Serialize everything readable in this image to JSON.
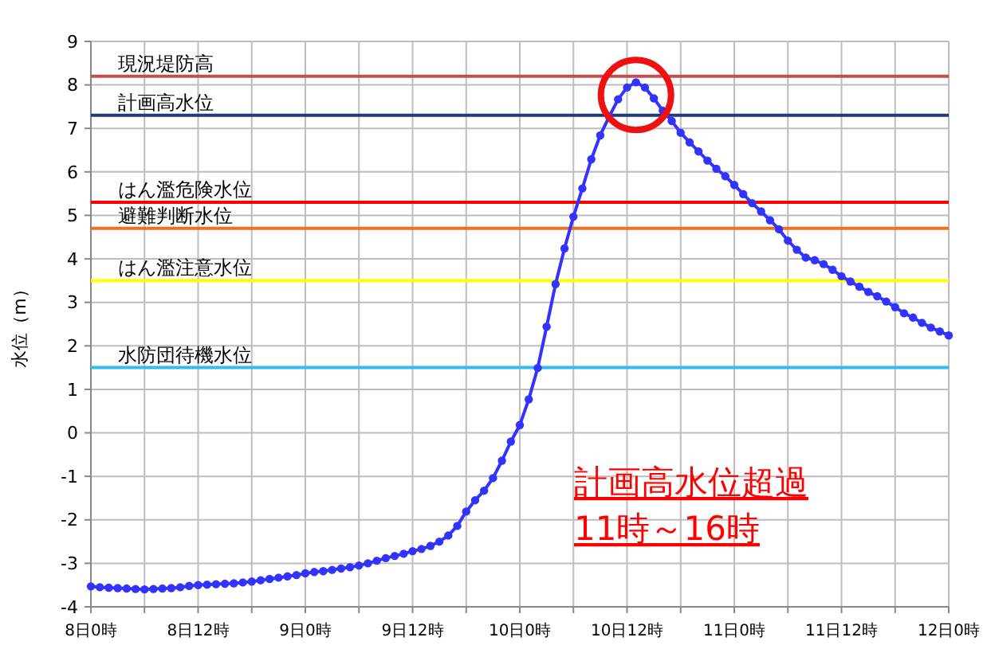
{
  "chart_data": {
    "type": "line",
    "ylabel": "水位（m）",
    "categories": [
      "8日0時",
      null,
      null,
      null,
      null,
      null,
      null,
      null,
      null,
      null,
      null,
      null,
      "8日12時",
      null,
      null,
      null,
      null,
      null,
      null,
      null,
      null,
      null,
      null,
      null,
      "9日0時",
      null,
      null,
      null,
      null,
      null,
      null,
      null,
      null,
      null,
      null,
      null,
      "9日12時",
      null,
      null,
      null,
      null,
      null,
      null,
      null,
      null,
      null,
      null,
      null,
      "10日0時",
      null,
      null,
      null,
      null,
      null,
      null,
      null,
      null,
      null,
      null,
      null,
      "10日12時",
      null,
      null,
      null,
      null,
      null,
      null,
      null,
      null,
      null,
      null,
      null,
      "11日0時",
      null,
      null,
      null,
      null,
      null,
      null,
      null,
      null,
      null,
      null,
      null,
      "11日12時",
      null,
      null,
      null,
      null,
      null,
      null,
      null,
      null,
      null,
      null,
      null,
      "12日0時"
    ],
    "series": [
      {
        "color": "#3333ff",
        "values": [
          -3.53,
          -3.55,
          -3.56,
          -3.57,
          -3.58,
          -3.59,
          -3.6,
          -3.59,
          -3.58,
          -3.57,
          -3.55,
          -3.52,
          -3.5,
          -3.49,
          -3.48,
          -3.47,
          -3.46,
          -3.44,
          -3.42,
          -3.39,
          -3.36,
          -3.33,
          -3.3,
          -3.27,
          -3.23,
          -3.2,
          -3.18,
          -3.15,
          -3.12,
          -3.09,
          -3.05,
          -3.0,
          -2.94,
          -2.88,
          -2.83,
          -2.78,
          -2.72,
          -2.67,
          -2.6,
          -2.5,
          -2.36,
          -2.14,
          -1.81,
          -1.55,
          -1.33,
          -1.04,
          -0.64,
          -0.2,
          0.18,
          0.77,
          1.49,
          2.44,
          3.42,
          4.24,
          4.97,
          5.62,
          6.29,
          6.84,
          7.27,
          7.67,
          7.94,
          8.06,
          7.94,
          7.69,
          7.41,
          7.17,
          6.9,
          6.68,
          6.47,
          6.26,
          6.07,
          5.9,
          5.7,
          5.49,
          5.28,
          5.09,
          4.89,
          4.68,
          4.42,
          4.21,
          4.03,
          3.97,
          3.88,
          3.75,
          3.6,
          3.48,
          3.36,
          3.24,
          3.14,
          3.02,
          2.89,
          2.75,
          2.65,
          2.53,
          2.42,
          2.33,
          2.24
        ]
      }
    ],
    "ylim": [
      -4,
      9
    ],
    "yticks": [
      -4,
      -3,
      -2,
      -1,
      0,
      1,
      2,
      3,
      4,
      5,
      6,
      7,
      8,
      9
    ],
    "grid": true,
    "marker": "circle",
    "line_style": "solid",
    "ref_lines": [
      {
        "axis": "y",
        "value": 8.2,
        "label": "現況堤防高",
        "color": "#c0504d"
      },
      {
        "axis": "y",
        "value": 7.3,
        "label": "計画高水位",
        "color": "#1f3b7a"
      },
      {
        "axis": "y",
        "value": 5.3,
        "label": "はん濫危険水位",
        "color": "#ff0000"
      },
      {
        "axis": "y",
        "value": 4.7,
        "label": "避難判断水位",
        "color": "#f07020"
      },
      {
        "axis": "y",
        "value": 3.5,
        "label": "はん濫注意水位",
        "color": "#ffff00"
      },
      {
        "axis": "y",
        "value": 1.5,
        "label": "水防団待機水位",
        "color": "#33bbee"
      }
    ],
    "annotations": [
      "計画高水位超過",
      "11時～16時"
    ]
  }
}
